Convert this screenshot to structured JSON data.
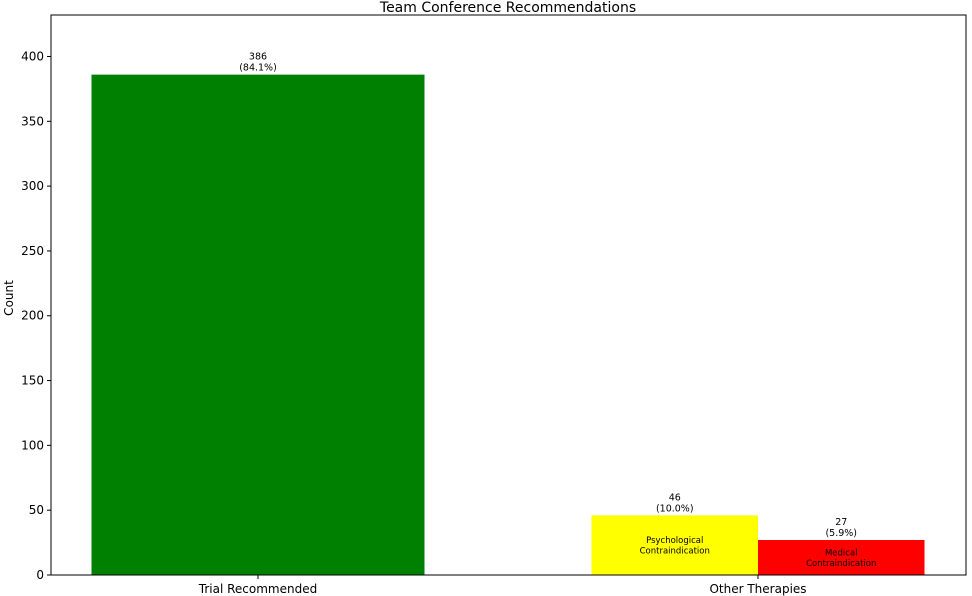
{
  "chart_data": {
    "type": "bar",
    "title": "Team Conference Recommendations",
    "xlabel": "",
    "ylabel": "Count",
    "ylim": [
      0,
      432
    ],
    "yticks": [
      0,
      50,
      100,
      150,
      200,
      250,
      300,
      350,
      400
    ],
    "grid": false,
    "legend": "none",
    "categories": [
      "Trial Recommended",
      "Other Therapies"
    ],
    "bars": [
      {
        "category": "Trial Recommended",
        "value": 386,
        "percent_label": "(84.1%)",
        "inner_label": [],
        "color": "#008000"
      },
      {
        "category": "Other Therapies",
        "value": 46,
        "percent_label": "(10.0%)",
        "inner_label": [
          "Psychological",
          "Contraindication"
        ],
        "color": "#ffff00"
      },
      {
        "category": "Other Therapies",
        "value": 27,
        "percent_label": "(5.9%)",
        "inner_label": [
          "Medical",
          "Contraindication"
        ],
        "color": "#ff0000"
      }
    ]
  }
}
